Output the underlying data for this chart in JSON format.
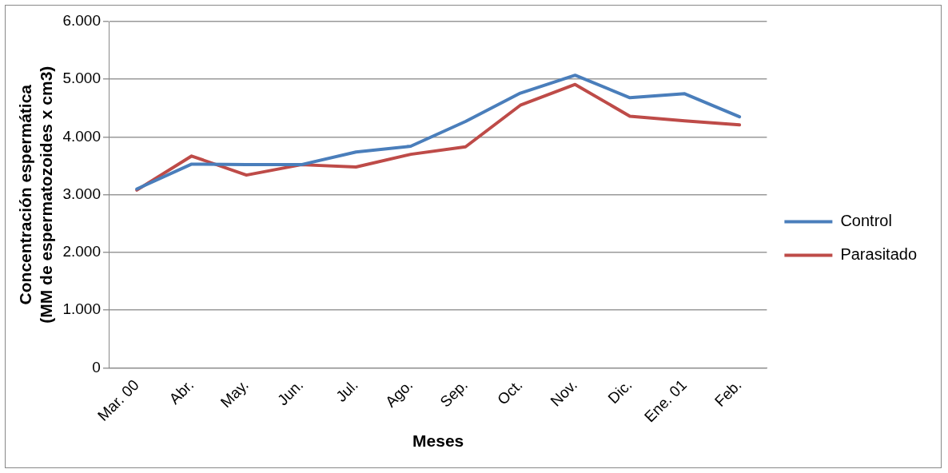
{
  "chart_data": {
    "type": "line",
    "xlabel": "Meses",
    "ylabel": "Concentración espermática\n(MM de espermatozoides x cm3)",
    "categories": [
      "Mar. 00",
      "Abr.",
      "May.",
      "Jun.",
      "Jul.",
      "Ago.",
      "Sep.",
      "Oct.",
      "Nov.",
      "Dic.",
      "Ene. 01",
      "Feb."
    ],
    "series": [
      {
        "name": "Control",
        "color": "#4a7ebb",
        "values": [
          3100,
          3530,
          3520,
          3520,
          3740,
          3840,
          4270,
          4760,
          5070,
          4680,
          4750,
          4350
        ]
      },
      {
        "name": "Parasitado",
        "color": "#be4b48",
        "values": [
          3080,
          3670,
          3340,
          3520,
          3480,
          3700,
          3830,
          4550,
          4910,
          4360,
          4280,
          4210
        ]
      }
    ],
    "ylim": [
      0,
      6000
    ],
    "yticks": [
      {
        "value": 0,
        "label": "0"
      },
      {
        "value": 1000,
        "label": "1.000"
      },
      {
        "value": 2000,
        "label": "2.000"
      },
      {
        "value": 3000,
        "label": "3.000"
      },
      {
        "value": 4000,
        "label": "4.000"
      },
      {
        "value": 5000,
        "label": "5.000"
      },
      {
        "value": 6000,
        "label": "6.000"
      }
    ],
    "grid": "y",
    "legend": "right",
    "marker": "none",
    "line_style": "solid"
  }
}
